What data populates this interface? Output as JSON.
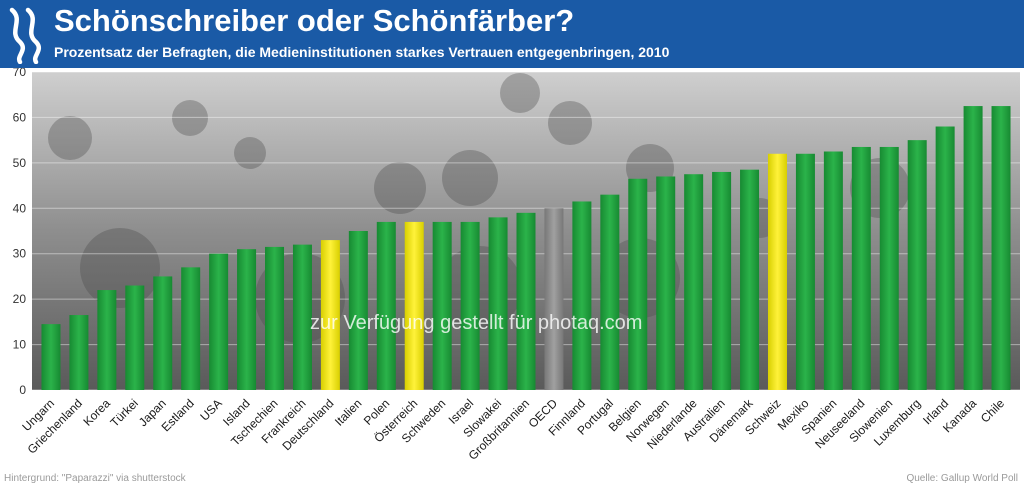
{
  "header": {
    "title": "Schönschreiber oder Schönfärber?",
    "subtitle": "Prozentsatz der Befragten, die Medieninstitutionen starkes Vertrauen entgegenbringen, 2010"
  },
  "watermark": "zur Verfügung gestellt für photaq.com",
  "credits": {
    "background": "Hintergrund: \"Paparazzi\" via shutterstock",
    "source": "Quelle: Gallup World Poll"
  },
  "colors": {
    "header": "#1a5aa6",
    "bar": "#1f9a3c",
    "highlight": "#f0e600",
    "oecd": "#8a8a8a"
  },
  "chart_data": {
    "type": "bar",
    "ylim": [
      0,
      70
    ],
    "yticks": [
      0,
      10,
      20,
      30,
      40,
      50,
      60,
      70
    ],
    "grid": true,
    "categories": [
      "Ungarn",
      "Griechenland",
      "Korea",
      "Türkei",
      "Japan",
      "Estland",
      "USA",
      "Island",
      "Tschechien",
      "Frankreich",
      "Deutschland",
      "Italien",
      "Polen",
      "Österreich",
      "Schweden",
      "Israel",
      "Slowakei",
      "Großbritannien",
      "OECD",
      "Finnland",
      "Portugal",
      "Belgien",
      "Norwegen",
      "Niederlande",
      "Australien",
      "Dänemark",
      "Schweiz",
      "Mexiko",
      "Spanien",
      "Neuseeland",
      "Slowenien",
      "Luxemburg",
      "Irland",
      "Kanada",
      "Chile"
    ],
    "values": [
      14.5,
      16.5,
      22,
      23,
      25,
      27,
      30,
      31,
      31.5,
      32,
      33,
      35,
      37,
      37,
      37,
      37,
      38,
      39,
      40,
      41.5,
      43,
      46.5,
      47,
      47.5,
      48,
      48.5,
      52,
      52,
      52.5,
      53.5,
      53.5,
      55,
      58,
      62.5,
      62.5
    ],
    "highlight": [
      "Deutschland",
      "Österreich",
      "Schweiz"
    ],
    "reference": [
      "OECD"
    ]
  }
}
